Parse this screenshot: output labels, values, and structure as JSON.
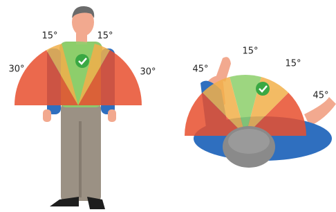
{
  "front_view": {
    "labels": [
      "15°",
      "15°",
      "30°",
      "30°"
    ]
  },
  "top_view": {
    "labels": [
      "45°",
      "15°",
      "15°",
      "45°"
    ]
  }
}
